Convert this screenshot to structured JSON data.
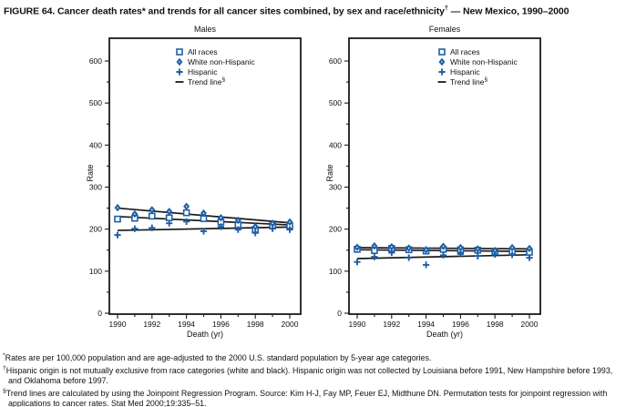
{
  "header": {
    "title_main": "FIGURE 64. Cancer death rates* and trends for all cancer sites combined, by sex and race/ethnicity",
    "title_sup": "†",
    "title_tail": " — New Mexico, 1990–2000"
  },
  "colors": {
    "marker": "#1e5fa5",
    "trend": "#1a1a1a",
    "axis": "#1a1a1a",
    "text": "#111111"
  },
  "chart_data": [
    {
      "type": "scatter",
      "title": "Males",
      "xlabel": "Death (yr)",
      "ylabel": "Rate",
      "x_years": [
        1990,
        1991,
        1992,
        1993,
        1994,
        1995,
        1996,
        1997,
        1998,
        1999,
        2000
      ],
      "x_tick_labels": [
        1990,
        1992,
        1994,
        1996,
        1998,
        2000
      ],
      "ylim": [
        0,
        600
      ],
      "y_major_step": 100,
      "y_minor_step": 50,
      "series": [
        {
          "name": "All races",
          "marker": "square",
          "values": [
            224,
            226,
            231,
            227,
            239,
            225,
            217,
            210,
            199,
            208,
            208
          ]
        },
        {
          "name": "White non-Hispanic",
          "marker": "diamond",
          "values": [
            251,
            236,
            246,
            242,
            254,
            238,
            227,
            221,
            206,
            214,
            217
          ]
        },
        {
          "name": "Hispanic",
          "marker": "plus",
          "values": [
            186,
            201,
            203,
            214,
            218,
            195,
            206,
            199,
            191,
            201,
            199
          ]
        }
      ],
      "trend_lines": [
        {
          "series": "White non-Hispanic",
          "start_year": 1990,
          "start_rate": 250,
          "end_year": 2000,
          "end_rate": 215
        },
        {
          "series": "All races",
          "start_year": 1990,
          "start_rate": 230,
          "end_year": 2000,
          "end_rate": 210
        },
        {
          "series": "Hispanic",
          "start_year": 1990,
          "start_rate": 197,
          "end_year": 2000,
          "end_rate": 205
        }
      ],
      "legend_items": [
        {
          "label": "All races",
          "marker": "square"
        },
        {
          "label": "White non-Hispanic",
          "marker": "diamond"
        },
        {
          "label": "Hispanic",
          "marker": "plus"
        },
        {
          "label": "Trend line",
          "sup": "§",
          "marker": "dash"
        }
      ]
    },
    {
      "type": "scatter",
      "title": "Females",
      "xlabel": "Death (yr)",
      "ylabel": "Rate",
      "x_years": [
        1990,
        1991,
        1992,
        1993,
        1994,
        1995,
        1996,
        1997,
        1998,
        1999,
        2000
      ],
      "x_tick_labels": [
        1990,
        1992,
        1994,
        1996,
        1998,
        2000
      ],
      "ylim": [
        0,
        600
      ],
      "y_major_step": 100,
      "y_minor_step": 50,
      "series": [
        {
          "name": "All races",
          "marker": "square",
          "values": [
            152,
            149,
            154,
            151,
            148,
            152,
            151,
            150,
            146,
            147,
            145
          ]
        },
        {
          "name": "White non-Hispanic",
          "marker": "diamond",
          "values": [
            157,
            160,
            158,
            155,
            151,
            159,
            156,
            153,
            149,
            156,
            154
          ]
        },
        {
          "name": "Hispanic",
          "marker": "plus",
          "values": [
            122,
            134,
            144,
            132,
            115,
            138,
            141,
            136,
            140,
            139,
            132
          ]
        }
      ],
      "trend_lines": [
        {
          "series": "White non-Hispanic",
          "start_year": 1990,
          "start_rate": 156,
          "end_year": 2000,
          "end_rate": 153
        },
        {
          "series": "All races",
          "start_year": 1990,
          "start_rate": 151,
          "end_year": 2000,
          "end_rate": 147
        },
        {
          "series": "Hispanic",
          "start_year": 1990,
          "start_rate": 130,
          "end_year": 2000,
          "end_rate": 139
        }
      ],
      "legend_items": [
        {
          "label": "All races",
          "marker": "square"
        },
        {
          "label": "White non-Hispanic",
          "marker": "diamond"
        },
        {
          "label": "Hispanic",
          "marker": "plus"
        },
        {
          "label": "Trend line",
          "sup": "§",
          "marker": "dash"
        }
      ]
    }
  ],
  "footnotes": [
    {
      "sup": "*",
      "text": "Rates are per 100,000 population and are age-adjusted to the 2000 U.S. standard population by 5-year age categories."
    },
    {
      "sup": "†",
      "text": "Hispanic origin is not mutually exclusive from race categories (white and black). Hispanic origin was not collected by Louisiana before 1991, New Hampshire before 1993, and Oklahoma before 1997."
    },
    {
      "sup": "§",
      "text": "Trend lines are calculated by using the Joinpoint Regression Program. Source: Kim H-J, Fay MP, Feuer EJ, Midthune DN. Permutation tests for joinpoint regression with applications to cancer rates. Stat Med 2000;19:335–51."
    }
  ]
}
